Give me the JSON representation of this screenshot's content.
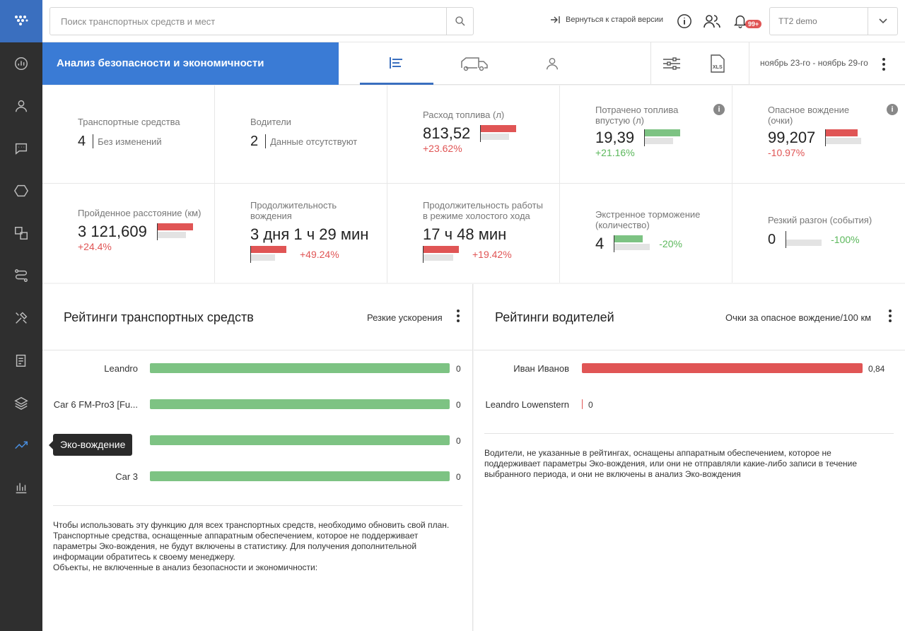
{
  "search": {
    "placeholder": "Поиск транспортных средств и мест"
  },
  "topbar": {
    "old_version": "Вернуться к старой версии",
    "badge": "99+",
    "account": "TT2 demo"
  },
  "header": {
    "title": "Анализ безопасности и экономичности",
    "date_range": "ноябрь 23-го - ноябрь 29-го"
  },
  "sidebar": {
    "tooltip": "Эко-вождение"
  },
  "colors": {
    "accent": "#3a7bd5",
    "sidebar": "#2f2f2f",
    "red": "#e05555",
    "green": "#7dc383"
  },
  "kpis": [
    {
      "label": "Транспортные средства",
      "value": "4",
      "note": "Без изменений"
    },
    {
      "label": "Водители",
      "value": "2",
      "note": "Данные отсутствуют"
    },
    {
      "label": "Расход топлива (л)",
      "value": "813,52",
      "delta": "+23.62%",
      "trend": "up-bad"
    },
    {
      "label": "Потрачено топлива впустую (л)",
      "value": "19,39",
      "delta": "+21.16%",
      "trend": "up-good"
    },
    {
      "label": "Опасное вождение (очки)",
      "value": "99,207",
      "delta": "-10.97%",
      "trend": "up-bad"
    },
    {
      "label": "Пройденное расстояние (км)",
      "value": "3 121,609",
      "delta": "+24.4%",
      "trend": "up-bad"
    },
    {
      "label": "Продолжительность вождения",
      "value": "3 дня 1 ч 29 мин",
      "delta": "+49.24%",
      "trend": "up-bad"
    },
    {
      "label": "Продолжительность работы в режиме холостого хода",
      "value": "17 ч 48 мин",
      "delta": "+19.42%",
      "trend": "up-bad"
    },
    {
      "label": "Экстренное торможение (количество)",
      "value": "4",
      "delta": "-20%",
      "trend": "down-good"
    },
    {
      "label": "Резкий разгон (события)",
      "value": "0",
      "delta": "-100%",
      "trend": "down-good"
    }
  ],
  "vehicle_ratings": {
    "title": "Рейтинги транспортных средств",
    "metric": "Резкие ускорения",
    "items": [
      {
        "name": "Leandro",
        "value": "0"
      },
      {
        "name": "Car 6 FM-Pro3 [Fu...",
        "value": "0"
      },
      {
        "name": "",
        "value": "0"
      },
      {
        "name": "Car 3",
        "value": "0"
      }
    ],
    "footer": "Чтобы использовать эту функцию для всех транспортных средств, необходимо обновить свой план. Транспортные средства, оснащенные аппаратным обеспечением, которое не поддерживает параметры Эко-вождения, не будут включены в статистику. Для получения дополнительной информации обратитесь к своему менеджеру.",
    "footer2": "Объекты, не включенные в анализ безопасности и экономичности:"
  },
  "driver_ratings": {
    "title": "Рейтинги водителей",
    "metric": "Очки за опасное вождение/100 км",
    "items": [
      {
        "name": "Иван Иванов",
        "value": "0,84"
      },
      {
        "name": "Leandro Lowenstern",
        "value": "0"
      }
    ],
    "footer": "Водители, не указанные в рейтингах, оснащены аппаратным обеспечением, которое не поддерживает параметры Эко-вождения, или они не отправляли какие-либо записи в течение выбранного периода, и они не включены в анализ Эко-вождения"
  }
}
